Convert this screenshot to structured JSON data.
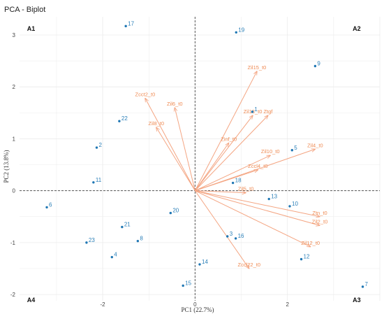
{
  "chart_data": {
    "type": "scatter",
    "title": "PCA - Biplot",
    "xlabel": "PC1 (22.7%)",
    "ylabel": "PC2 (13.8%)",
    "xlim": [
      -3.8,
      4.0
    ],
    "ylim": [
      -2.12,
      3.35
    ],
    "xticks": [
      -2,
      0,
      2
    ],
    "yticks": [
      -2,
      -1,
      0,
      1,
      2,
      3
    ],
    "grid": true,
    "quadrants": [
      {
        "label": "A1",
        "x": -3.55,
        "y": 3.08
      },
      {
        "label": "A2",
        "x": 3.5,
        "y": 3.08
      },
      {
        "label": "A3",
        "x": 3.5,
        "y": -2.15
      },
      {
        "label": "A4",
        "x": -3.55,
        "y": -2.15
      }
    ],
    "colors": {
      "points": "#1f77b4",
      "point_labels": "#2a7fb8",
      "arrows": "#f4a582",
      "arrow_labels": "#ef8a52",
      "grid": "#ebebeb",
      "refline": "#555555"
    },
    "observations": [
      {
        "label": "1",
        "x": 1.24,
        "y": 1.52
      },
      {
        "label": "2",
        "x": -2.13,
        "y": 0.83
      },
      {
        "label": "3",
        "x": 0.7,
        "y": -0.88
      },
      {
        "label": "4",
        "x": -1.8,
        "y": -1.28
      },
      {
        "label": "5",
        "x": 2.1,
        "y": 0.78
      },
      {
        "label": "6",
        "x": -3.21,
        "y": -0.32
      },
      {
        "label": "7",
        "x": 3.63,
        "y": -1.85
      },
      {
        "label": "8",
        "x": -1.24,
        "y": -0.97
      },
      {
        "label": "9",
        "x": 2.6,
        "y": 2.4
      },
      {
        "label": "10",
        "x": 2.05,
        "y": -0.3
      },
      {
        "label": "11",
        "x": -2.2,
        "y": 0.16
      },
      {
        "label": "12",
        "x": 2.3,
        "y": -1.32
      },
      {
        "label": "13",
        "x": 1.6,
        "y": -0.16
      },
      {
        "label": "14",
        "x": 0.1,
        "y": -1.42
      },
      {
        "label": "15",
        "x": -0.26,
        "y": -1.83
      },
      {
        "label": "16",
        "x": 0.88,
        "y": -0.92
      },
      {
        "label": "17",
        "x": -1.5,
        "y": 3.17
      },
      {
        "label": "18",
        "x": 0.82,
        "y": 0.15
      },
      {
        "label": "19",
        "x": 0.89,
        "y": 3.05
      },
      {
        "label": "20",
        "x": -0.53,
        "y": -0.43
      },
      {
        "label": "21",
        "x": -1.58,
        "y": -0.7
      },
      {
        "label": "22",
        "x": -1.64,
        "y": 1.34
      },
      {
        "label": "23",
        "x": -2.35,
        "y": -1.0
      }
    ],
    "variables": [
      {
        "label": "Zcct2_t0",
        "x": -1.08,
        "y": 1.78
      },
      {
        "label": "Zil6_t0",
        "x": -0.44,
        "y": 1.6
      },
      {
        "label": "Zil8_t0",
        "x": -0.84,
        "y": 1.22
      },
      {
        "label": "Zil15_t0",
        "x": 1.34,
        "y": 2.3
      },
      {
        "label": "Zil13_t0",
        "x": 1.25,
        "y": 1.45
      },
      {
        "label": "Ztgf",
        "x": 1.58,
        "y": 1.45
      },
      {
        "label": "Zinf_t0",
        "x": 0.73,
        "y": 0.92
      },
      {
        "label": "Zil10_t0",
        "x": 1.63,
        "y": 0.68
      },
      {
        "label": "Zccl4_t0",
        "x": 1.36,
        "y": 0.4
      },
      {
        "label": "Zil4_t0",
        "x": 2.6,
        "y": 0.8
      },
      {
        "label": "Zil5_t0",
        "x": 1.1,
        "y": -0.04
      },
      {
        "label": "Ztn_t0",
        "x": 2.7,
        "y": -0.5
      },
      {
        "label": "Zil2_t0",
        "x": 2.7,
        "y": -0.67
      },
      {
        "label": "Zil12_t0",
        "x": 2.5,
        "y": -1.08
      },
      {
        "label": "Zccl22_t0",
        "x": 1.17,
        "y": -1.5
      }
    ]
  }
}
